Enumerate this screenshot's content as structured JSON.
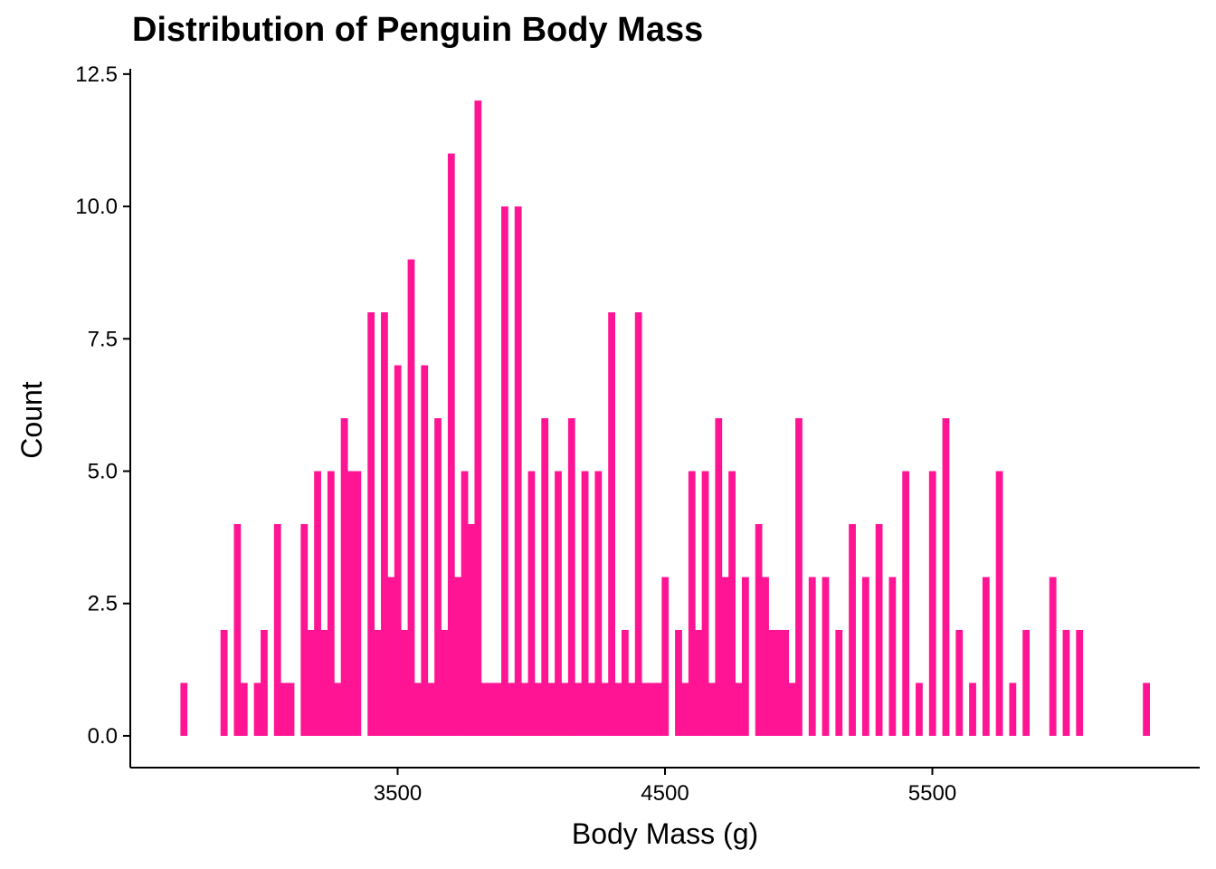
{
  "chart_data": {
    "type": "bar",
    "title": "Distribution of Penguin Body Mass",
    "xlabel": "Body Mass (g)",
    "ylabel": "Count",
    "x_ticks": [
      3500,
      4500,
      5500
    ],
    "y_ticks": [
      "0.0",
      "2.5",
      "5.0",
      "7.5",
      "10.0",
      "12.5"
    ],
    "xlim": [
      2500,
      6500
    ],
    "ylim": [
      -0.6,
      12.6
    ],
    "bin_width": 25,
    "bar_color": "#FF1493",
    "grid": false,
    "series": [
      {
        "x": [
          2700,
          2850,
          2900,
          2925,
          2975,
          3000,
          3050,
          3075,
          3100,
          3150,
          3175,
          3200,
          3225,
          3250,
          3275,
          3300,
          3325,
          3350,
          3400,
          3425,
          3450,
          3475,
          3500,
          3525,
          3550,
          3575,
          3600,
          3625,
          3650,
          3675,
          3700,
          3725,
          3750,
          3775,
          3800,
          3825,
          3850,
          3875,
          3900,
          3925,
          3950,
          3975,
          4000,
          4025,
          4050,
          4075,
          4100,
          4125,
          4150,
          4175,
          4200,
          4225,
          4250,
          4275,
          4300,
          4325,
          4350,
          4375,
          4400,
          4425,
          4450,
          4475,
          4500,
          4550,
          4575,
          4600,
          4625,
          4650,
          4675,
          4700,
          4725,
          4750,
          4775,
          4800,
          4850,
          4875,
          4900,
          4925,
          4950,
          4975,
          5000,
          5050,
          5100,
          5150,
          5200,
          5250,
          5300,
          5350,
          5400,
          5450,
          5500,
          5550,
          5600,
          5650,
          5700,
          5750,
          5800,
          5850,
          5950,
          6000,
          6050,
          6300
        ],
        "y": [
          1,
          2,
          4,
          1,
          1,
          2,
          4,
          1,
          1,
          4,
          2,
          5,
          2,
          5,
          1,
          6,
          5,
          5,
          8,
          2,
          8,
          3,
          7,
          2,
          9,
          1,
          7,
          1,
          6,
          2,
          11,
          3,
          5,
          4,
          12,
          1,
          1,
          1,
          10,
          1,
          10,
          1,
          5,
          1,
          6,
          1,
          5,
          1,
          6,
          1,
          5,
          1,
          5,
          1,
          8,
          1,
          2,
          1,
          8,
          1,
          1,
          1,
          3,
          2,
          1,
          5,
          2,
          5,
          1,
          6,
          3,
          5,
          1,
          3,
          4,
          3,
          2,
          2,
          2,
          1,
          6,
          3,
          3,
          2,
          4,
          3,
          4,
          3,
          5,
          1,
          5,
          6,
          2,
          1,
          3,
          5,
          1,
          2,
          3,
          2,
          2,
          1
        ]
      }
    ]
  }
}
